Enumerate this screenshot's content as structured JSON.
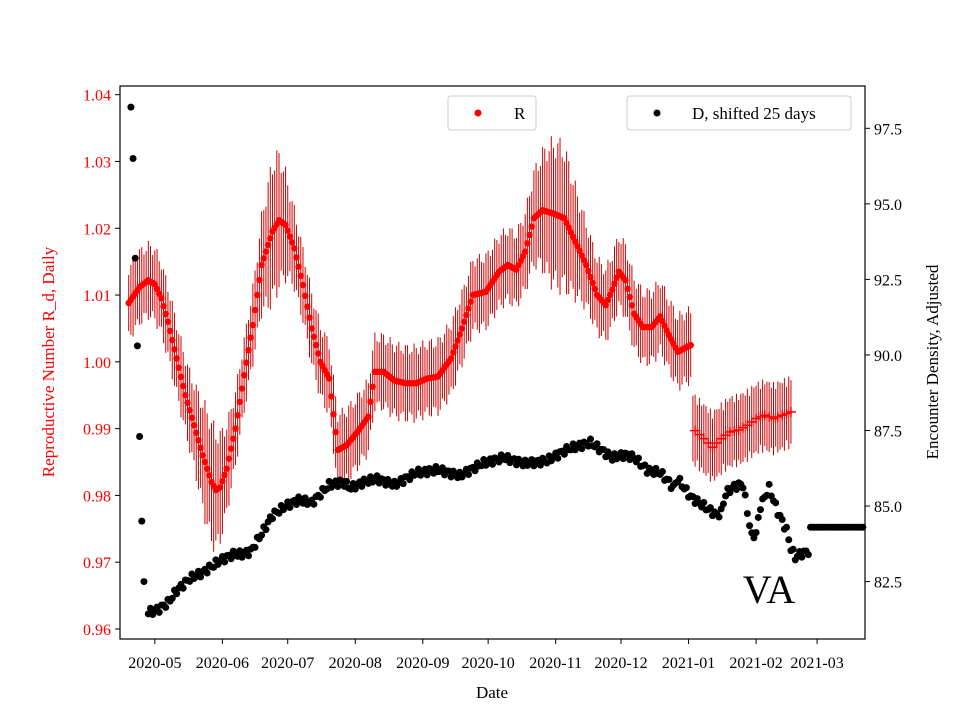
{
  "chart_data": {
    "type": "scatter",
    "state_label": "VA",
    "xlabel": "Date",
    "ylabel_left": "Reproductive Number R_d, Daily",
    "ylabel_right": "Encounter Density, Adjusted",
    "x_ticks": [
      "2020-05",
      "2020-06",
      "2020-07",
      "2020-08",
      "2020-09",
      "2020-10",
      "2020-11",
      "2020-12",
      "2021-01",
      "2021-02",
      "2021-03"
    ],
    "x_tick_days": [
      0,
      31,
      61,
      92,
      123,
      153,
      184,
      214,
      245,
      276,
      304
    ],
    "xlim_days": [
      -16,
      326
    ],
    "y_left_ticks": [
      "0.96",
      "0.97",
      "0.98",
      "0.99",
      "1.00",
      "1.01",
      "1.02",
      "1.03",
      "1.04"
    ],
    "y_left_lim": [
      0.9585,
      1.0413
    ],
    "y_right_ticks": [
      "82.5",
      "85.0",
      "87.5",
      "90.0",
      "92.5",
      "95.0",
      "97.5"
    ],
    "y_right_lim": [
      80.6,
      98.9
    ],
    "legend": [
      {
        "label": "R",
        "color": "#ff0000"
      },
      {
        "label": "D, shifted 25 days",
        "color": "#000000"
      }
    ],
    "colors": {
      "r_axis": "#ff0000",
      "r_series": "#ff0000",
      "r_error": "#cc0000",
      "d_series": "#000000"
    },
    "series_R": {
      "name": "R",
      "knots": [
        [
          -12,
          1.0088
        ],
        [
          -7,
          1.0112
        ],
        [
          -3,
          1.0122
        ],
        [
          0,
          1.0116
        ],
        [
          3,
          1.0095
        ],
        [
          6,
          1.006
        ],
        [
          10,
          1.0005
        ],
        [
          14,
          0.995
        ],
        [
          18,
          0.9905
        ],
        [
          22,
          0.986
        ],
        [
          26,
          0.982
        ],
        [
          28,
          0.9808
        ],
        [
          30,
          0.9812
        ],
        [
          33,
          0.984
        ],
        [
          37,
          0.99
        ],
        [
          41,
          0.998
        ],
        [
          45,
          1.0055
        ],
        [
          49,
          1.0145
        ],
        [
          54,
          1.0195
        ],
        [
          57,
          1.0212
        ],
        [
          60,
          1.0205
        ],
        [
          64,
          1.017
        ],
        [
          68,
          1.0115
        ],
        [
          72,
          1.005
        ],
        [
          76,
          1.0
        ],
        [
          80,
          0.9975
        ],
        [
          84,
          0.9868
        ],
        [
          88,
          0.9875
        ],
        [
          93,
          0.9895
        ],
        [
          98,
          0.9918
        ],
        [
          101,
          0.9985
        ],
        [
          105,
          0.9985
        ],
        [
          110,
          0.9972
        ],
        [
          115,
          0.9968
        ],
        [
          120,
          0.9968
        ],
        [
          125,
          0.9975
        ],
        [
          130,
          0.9978
        ],
        [
          136,
          1.0005
        ],
        [
          141,
          1.005
        ],
        [
          146,
          1.01
        ],
        [
          152,
          1.0105
        ],
        [
          158,
          1.0135
        ],
        [
          162,
          1.0145
        ],
        [
          166,
          1.0138
        ],
        [
          170,
          1.0165
        ],
        [
          174,
          1.0215
        ],
        [
          178,
          1.0227
        ],
        [
          183,
          1.0222
        ],
        [
          188,
          1.0215
        ],
        [
          193,
          1.018
        ],
        [
          198,
          1.0145
        ],
        [
          203,
          1.01
        ],
        [
          207,
          1.0085
        ],
        [
          210,
          1.0108
        ],
        [
          213,
          1.0135
        ],
        [
          216,
          1.0122
        ],
        [
          220,
          1.0072
        ],
        [
          224,
          1.0052
        ],
        [
          228,
          1.0052
        ],
        [
          232,
          1.0068
        ],
        [
          236,
          1.004
        ],
        [
          240,
          1.0015
        ],
        [
          243,
          1.002
        ],
        [
          246,
          1.0025
        ]
      ],
      "err_base": 0.006,
      "err_peaks": [
        {
          "day": 55,
          "amp": 0.0055,
          "width": 6
        },
        {
          "day": 185,
          "amp": 0.006,
          "width": 10
        },
        {
          "day": 26,
          "amp": 0.004,
          "width": 7
        }
      ]
    },
    "series_R_late": {
      "name": "R",
      "marker": "+",
      "knots": [
        [
          247,
          0.99
        ],
        [
          252,
          0.9885
        ],
        [
          256,
          0.9872
        ],
        [
          260,
          0.9885
        ],
        [
          264,
          0.9895
        ],
        [
          268,
          0.9898
        ],
        [
          272,
          0.9905
        ],
        [
          276,
          0.9915
        ],
        [
          280,
          0.992
        ],
        [
          284,
          0.9915
        ],
        [
          288,
          0.992
        ],
        [
          292,
          0.9925
        ]
      ],
      "err_base": 0.005
    },
    "series_D": {
      "name": "D, shifted 25 days",
      "knots": [
        [
          -11,
          98.2
        ],
        [
          -10,
          96.5
        ],
        [
          -9,
          93.2
        ],
        [
          -8,
          90.3
        ],
        [
          -7,
          87.3
        ],
        [
          -6,
          84.5
        ],
        [
          -5,
          82.5
        ],
        [
          -3,
          81.5
        ],
        [
          -1,
          81.5
        ],
        [
          2,
          81.6
        ],
        [
          6,
          81.8
        ],
        [
          10,
          82.2
        ],
        [
          16,
          82.6
        ],
        [
          22,
          82.8
        ],
        [
          30,
          83.2
        ],
        [
          36,
          83.4
        ],
        [
          40,
          83.4
        ],
        [
          44,
          83.5
        ],
        [
          50,
          84.2
        ],
        [
          54,
          84.7
        ],
        [
          60,
          85.0
        ],
        [
          66,
          85.2
        ],
        [
          72,
          85.1
        ],
        [
          80,
          85.7
        ],
        [
          86,
          85.8
        ],
        [
          90,
          85.6
        ],
        [
          96,
          85.8
        ],
        [
          102,
          85.9
        ],
        [
          110,
          85.7
        ],
        [
          120,
          86.1
        ],
        [
          130,
          86.2
        ],
        [
          140,
          86.0
        ],
        [
          150,
          86.4
        ],
        [
          160,
          86.6
        ],
        [
          170,
          86.4
        ],
        [
          180,
          86.5
        ],
        [
          190,
          86.9
        ],
        [
          200,
          87.1
        ],
        [
          210,
          86.6
        ],
        [
          216,
          86.7
        ],
        [
          220,
          86.6
        ],
        [
          226,
          86.2
        ],
        [
          232,
          86.1
        ],
        [
          236,
          85.8
        ],
        [
          238,
          85.6
        ],
        [
          240,
          85.9
        ],
        [
          244,
          85.5
        ],
        [
          246,
          85.3
        ],
        [
          250,
          85.1
        ],
        [
          254,
          84.9
        ],
        [
          256,
          84.8
        ],
        [
          258,
          84.7
        ],
        [
          260,
          84.8
        ],
        [
          262,
          85.4
        ],
        [
          265,
          85.6
        ],
        [
          268,
          85.7
        ],
        [
          270,
          85.7
        ],
        [
          272,
          84.8
        ],
        [
          274,
          84.0
        ],
        [
          276,
          84.1
        ],
        [
          278,
          85.0
        ],
        [
          280,
          85.3
        ],
        [
          282,
          85.6
        ],
        [
          286,
          84.8
        ],
        [
          290,
          84.2
        ],
        [
          292,
          83.6
        ],
        [
          294,
          83.3
        ],
        [
          296,
          83.4
        ],
        [
          300,
          83.5
        ]
      ]
    }
  }
}
